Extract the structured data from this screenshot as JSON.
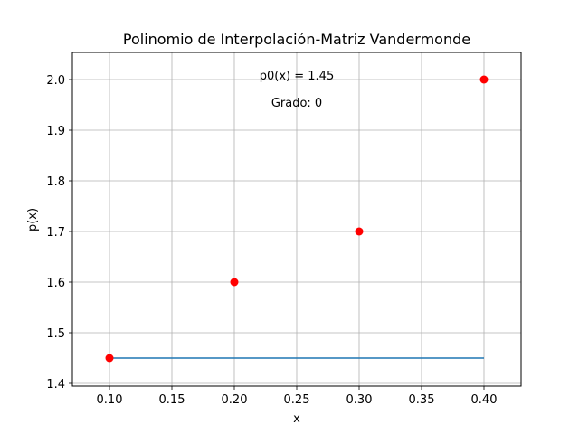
{
  "chart_data": {
    "type": "scatter",
    "title": "Polinomio de Interpolación-Matriz Vandermonde",
    "xlabel": "x",
    "ylabel": "p(x)",
    "xlim": [
      0.07,
      0.43
    ],
    "ylim": [
      1.395,
      2.055
    ],
    "grid": true,
    "x_ticks": [
      "0.10",
      "0.15",
      "0.20",
      "0.25",
      "0.30",
      "0.35",
      "0.40"
    ],
    "y_ticks": [
      "1.4",
      "1.5",
      "1.6",
      "1.7",
      "1.8",
      "1.9",
      "2.0"
    ],
    "series": [
      {
        "name": "datos",
        "type": "scatter",
        "color": "#ff0000",
        "x": [
          0.1,
          0.2,
          0.3,
          0.4
        ],
        "y": [
          1.45,
          1.6,
          1.7,
          2.0
        ]
      },
      {
        "name": "p0(x)",
        "type": "line",
        "color": "#1f77b4",
        "x": [
          0.1,
          0.4
        ],
        "y": [
          1.45,
          1.45
        ]
      }
    ],
    "annotations": [
      {
        "text": "p0(x) = 1.45",
        "x": 0.25,
        "y": 2.0
      },
      {
        "text": "Grado: 0",
        "x": 0.25,
        "y": 1.95
      }
    ]
  }
}
